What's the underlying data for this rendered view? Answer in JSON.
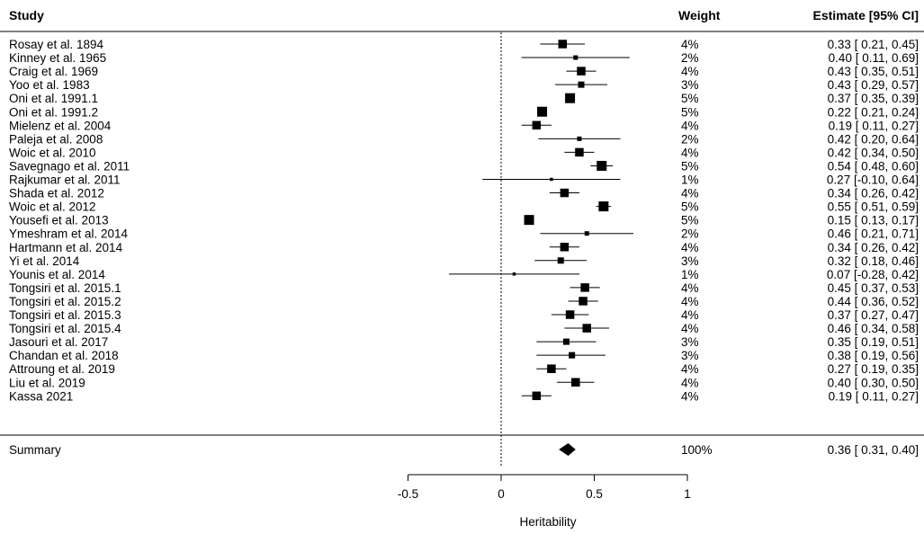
{
  "headers": {
    "study": "Study",
    "weight": "Weight",
    "estimate": "Estimate [95% CI]"
  },
  "chart_data": {
    "type": "forest",
    "xlabel": "Heritability",
    "xlim": [
      -0.5,
      1
    ],
    "xticks": [
      -0.5,
      0,
      0.5,
      1
    ],
    "tick_labels": [
      "-0.5",
      "0",
      "0.5",
      "1"
    ],
    "reference_line_x": 0,
    "studies": [
      {
        "name": "Rosay et al. 1894",
        "weight": "4%",
        "est": 0.33,
        "lo": 0.21,
        "hi": 0.45,
        "ci_text": "0.33 [ 0.21, 0.45]"
      },
      {
        "name": "Kinney et al. 1965",
        "weight": "2%",
        "est": 0.4,
        "lo": 0.11,
        "hi": 0.69,
        "ci_text": "0.40 [ 0.11, 0.69]"
      },
      {
        "name": "Craig et al. 1969",
        "weight": "4%",
        "est": 0.43,
        "lo": 0.35,
        "hi": 0.51,
        "ci_text": "0.43 [ 0.35, 0.51]"
      },
      {
        "name": "Yoo et al. 1983",
        "weight": "3%",
        "est": 0.43,
        "lo": 0.29,
        "hi": 0.57,
        "ci_text": "0.43 [ 0.29, 0.57]"
      },
      {
        "name": "Oni et al. 1991.1",
        "weight": "5%",
        "est": 0.37,
        "lo": 0.35,
        "hi": 0.39,
        "ci_text": "0.37 [ 0.35, 0.39]"
      },
      {
        "name": "Oni et al. 1991.2",
        "weight": "5%",
        "est": 0.22,
        "lo": 0.21,
        "hi": 0.24,
        "ci_text": "0.22 [ 0.21, 0.24]"
      },
      {
        "name": "Mielenz et al. 2004",
        "weight": "4%",
        "est": 0.19,
        "lo": 0.11,
        "hi": 0.27,
        "ci_text": "0.19 [ 0.11, 0.27]"
      },
      {
        "name": "Paleja et al. 2008",
        "weight": "2%",
        "est": 0.42,
        "lo": 0.2,
        "hi": 0.64,
        "ci_text": "0.42 [ 0.20, 0.64]"
      },
      {
        "name": "Woic et al. 2010",
        "weight": "4%",
        "est": 0.42,
        "lo": 0.34,
        "hi": 0.5,
        "ci_text": "0.42 [ 0.34, 0.50]"
      },
      {
        "name": "Savegnago et al. 2011",
        "weight": "5%",
        "est": 0.54,
        "lo": 0.48,
        "hi": 0.6,
        "ci_text": "0.54 [ 0.48, 0.60]"
      },
      {
        "name": "Rajkumar et al. 2011",
        "weight": "1%",
        "est": 0.27,
        "lo": -0.1,
        "hi": 0.64,
        "ci_text": "0.27 [-0.10, 0.64]"
      },
      {
        "name": "Shada et al. 2012",
        "weight": "4%",
        "est": 0.34,
        "lo": 0.26,
        "hi": 0.42,
        "ci_text": "0.34 [ 0.26, 0.42]"
      },
      {
        "name": "Woic et al. 2012",
        "weight": "5%",
        "est": 0.55,
        "lo": 0.51,
        "hi": 0.59,
        "ci_text": "0.55 [ 0.51, 0.59]"
      },
      {
        "name": "Yousefi et al. 2013",
        "weight": "5%",
        "est": 0.15,
        "lo": 0.13,
        "hi": 0.17,
        "ci_text": "0.15 [ 0.13, 0.17]"
      },
      {
        "name": "Ymeshram et al. 2014",
        "weight": "2%",
        "est": 0.46,
        "lo": 0.21,
        "hi": 0.71,
        "ci_text": "0.46 [ 0.21, 0.71]"
      },
      {
        "name": "Hartmann et al. 2014",
        "weight": "4%",
        "est": 0.34,
        "lo": 0.26,
        "hi": 0.42,
        "ci_text": "0.34 [ 0.26, 0.42]"
      },
      {
        "name": "Yi et al. 2014",
        "weight": "3%",
        "est": 0.32,
        "lo": 0.18,
        "hi": 0.46,
        "ci_text": "0.32 [ 0.18, 0.46]"
      },
      {
        "name": "Younis et al. 2014",
        "weight": "1%",
        "est": 0.07,
        "lo": -0.28,
        "hi": 0.42,
        "ci_text": "0.07 [-0.28, 0.42]"
      },
      {
        "name": "Tongsiri et al. 2015.1",
        "weight": "4%",
        "est": 0.45,
        "lo": 0.37,
        "hi": 0.53,
        "ci_text": "0.45 [ 0.37, 0.53]"
      },
      {
        "name": "Tongsiri et al. 2015.2",
        "weight": "4%",
        "est": 0.44,
        "lo": 0.36,
        "hi": 0.52,
        "ci_text": "0.44 [ 0.36, 0.52]"
      },
      {
        "name": "Tongsiri et al. 2015.3",
        "weight": "4%",
        "est": 0.37,
        "lo": 0.27,
        "hi": 0.47,
        "ci_text": "0.37 [ 0.27, 0.47]"
      },
      {
        "name": "Tongsiri et al. 2015.4",
        "weight": "4%",
        "est": 0.46,
        "lo": 0.34,
        "hi": 0.58,
        "ci_text": "0.46 [ 0.34, 0.58]"
      },
      {
        "name": "Jasouri et al. 2017",
        "weight": "3%",
        "est": 0.35,
        "lo": 0.19,
        "hi": 0.51,
        "ci_text": "0.35 [ 0.19, 0.51]"
      },
      {
        "name": "Chandan et al. 2018",
        "weight": "3%",
        "est": 0.38,
        "lo": 0.19,
        "hi": 0.56,
        "ci_text": "0.38 [ 0.19, 0.56]"
      },
      {
        "name": "Attroung et al. 2019",
        "weight": "4%",
        "est": 0.27,
        "lo": 0.19,
        "hi": 0.35,
        "ci_text": "0.27 [ 0.19, 0.35]"
      },
      {
        "name": "Liu et al. 2019",
        "weight": "4%",
        "est": 0.4,
        "lo": 0.3,
        "hi": 0.5,
        "ci_text": "0.40 [ 0.30, 0.50]"
      },
      {
        "name": "Kassa 2021",
        "weight": "4%",
        "est": 0.19,
        "lo": 0.11,
        "hi": 0.27,
        "ci_text": "0.19 [ 0.11, 0.27]"
      }
    ],
    "summary": {
      "name": "Summary",
      "weight": "100%",
      "est": 0.36,
      "lo": 0.31,
      "hi": 0.4,
      "ci_text": "0.36 [ 0.31, 0.40]"
    }
  }
}
